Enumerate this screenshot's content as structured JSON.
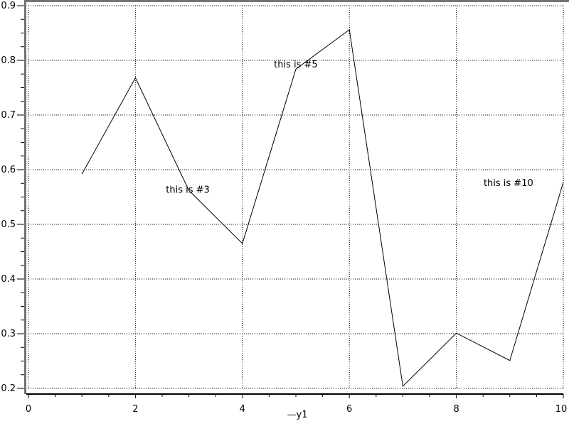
{
  "chart_data": {
    "type": "line",
    "title": "",
    "xlabel": "",
    "ylabel": "",
    "xlim": [
      0,
      10
    ],
    "ylim": [
      0.2,
      0.9
    ],
    "grid": true,
    "legend": "—y1",
    "legend_position": "below-axis-center",
    "x": [
      1,
      2,
      3,
      4,
      5,
      6,
      7,
      8,
      9,
      10
    ],
    "series": [
      {
        "name": "y1",
        "values": [
          0.592,
          0.768,
          0.562,
          0.465,
          0.784,
          0.856,
          0.204,
          0.301,
          0.251,
          0.577
        ]
      }
    ],
    "x_ticks": [
      {
        "v": 0,
        "label": "0"
      },
      {
        "v": 2,
        "label": "2"
      },
      {
        "v": 4,
        "label": "4"
      },
      {
        "v": 6,
        "label": "6"
      },
      {
        "v": 8,
        "label": "8"
      },
      {
        "v": 10,
        "label": "10"
      }
    ],
    "y_ticks": [
      {
        "v": 0.2,
        "label": "0.2"
      },
      {
        "v": 0.3,
        "label": "0.3"
      },
      {
        "v": 0.4,
        "label": "0.4"
      },
      {
        "v": 0.5,
        "label": "0.5"
      },
      {
        "v": 0.6,
        "label": "0.6"
      },
      {
        "v": 0.7,
        "label": "0.7"
      },
      {
        "v": 0.8,
        "label": "0.8"
      },
      {
        "v": 0.9,
        "label": "0.9"
      }
    ],
    "x_minor_step": 0.5,
    "y_minor_step": 0.025,
    "annotations": [
      {
        "text": "this is #3",
        "x": 2.57,
        "y": 0.558
      },
      {
        "text": "this is #5",
        "x": 4.59,
        "y": 0.787
      },
      {
        "text": "this is #10",
        "x": 8.51,
        "y": 0.57
      }
    ],
    "colors": {
      "line": "#000000",
      "grid": "#000000",
      "text": "#000000",
      "border": "#737373",
      "background": "#ffffff"
    }
  }
}
